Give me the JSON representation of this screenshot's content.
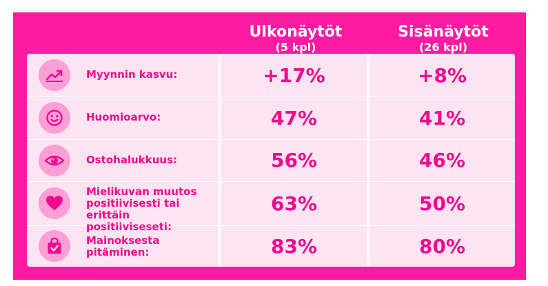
{
  "header": {
    "col_a_title": "Ulkonäytöt",
    "col_a_sub": "(5 kpl)",
    "col_b_title": "Sisänäytöt",
    "col_b_sub": "(26 kpl)"
  },
  "rows": [
    {
      "icon": "trend-up-icon",
      "label": "Myynnin kasvu:",
      "a": "+17%",
      "b": "+8%"
    },
    {
      "icon": "smiley-icon",
      "label": "Huomioarvo:",
      "a": "47%",
      "b": "41%"
    },
    {
      "icon": "eye-icon",
      "label": "Ostohalukkuus:",
      "a": "56%",
      "b": "46%"
    },
    {
      "icon": "heart-icon",
      "label_lines": [
        "Mielikuvan muutos",
        "positiivisesti tai",
        "erittäin positiiviseseti:"
      ],
      "a": "63%",
      "b": "50%"
    },
    {
      "icon": "shopping-bag-check-icon",
      "label_lines": [
        "Mainoksesta",
        "pitäminen:"
      ],
      "a": "83%",
      "b": "80%"
    }
  ],
  "colors": {
    "background": "#ff1aa3",
    "table": "#fde4f3",
    "accent_text": "#ef0a8e",
    "icon_circle": "#fb9fd5"
  }
}
